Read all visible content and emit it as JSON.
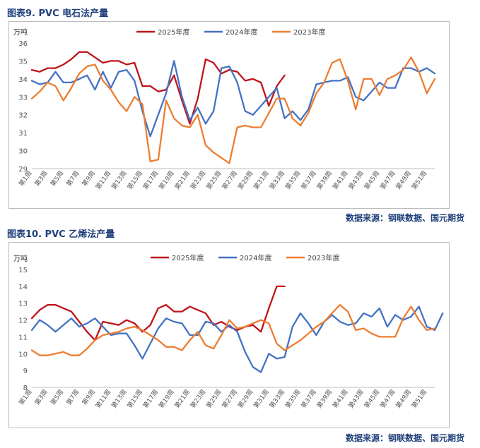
{
  "figure1": {
    "title": "图表9.  PVC 电石法产量",
    "unit": "万吨",
    "source": "数据来源：钢联数据、国元期货"
  },
  "figure2": {
    "title": "图表10.  PVC 乙烯法产量",
    "unit": "万吨",
    "source": "数据来源：钢联数据、国元期货"
  },
  "colors": {
    "s2025": "#c0141a",
    "s2024": "#4472c4",
    "s2023": "#ed7d31"
  },
  "chart_data": [
    {
      "type": "line",
      "title": "",
      "ylabel": "万吨",
      "ylim": [
        29,
        36
      ],
      "yticks": [
        29,
        30,
        31,
        32,
        33,
        34,
        35,
        36
      ],
      "x_tick_labels": [
        "第1周",
        "第3周",
        "第5周",
        "第7周",
        "第9周",
        "第11周",
        "第13周",
        "第15周",
        "第17周",
        "第19周",
        "第21周",
        "第23周",
        "第25周",
        "第27周",
        "第29周",
        "第31周",
        "第33周",
        "第35周",
        "第37周",
        "第39周",
        "第41周",
        "第43周",
        "第45周",
        "第47周",
        "第49周",
        "第51周"
      ],
      "x_tick_weeks": [
        1,
        3,
        5,
        7,
        9,
        11,
        13,
        15,
        17,
        19,
        21,
        23,
        25,
        27,
        29,
        31,
        33,
        35,
        37,
        39,
        41,
        43,
        45,
        47,
        49,
        51
      ],
      "x_range": [
        1,
        52
      ],
      "legend_position": "top-center",
      "series": [
        {
          "name": "2025年度",
          "weeks_start": 1,
          "values": [
            34.5,
            34.4,
            34.6,
            34.6,
            34.8,
            35.1,
            35.5,
            35.5,
            35.2,
            34.9,
            35.0,
            35.0,
            34.8,
            34.9,
            33.6,
            33.6,
            33.3,
            33.4,
            34.2,
            32.8,
            31.5,
            32.9,
            35.1,
            34.9,
            34.3,
            34.5,
            34.4,
            33.9,
            34.0,
            33.8,
            32.5,
            33.6,
            34.2
          ]
        },
        {
          "name": "2024年度",
          "weeks_start": 1,
          "values": [
            33.9,
            33.7,
            33.8,
            34.4,
            33.8,
            33.8,
            34.0,
            34.2,
            33.4,
            34.4,
            33.5,
            34.4,
            34.5,
            33.9,
            32.2,
            30.8,
            32.0,
            33.2,
            35.0,
            33.0,
            31.7,
            32.4,
            31.5,
            32.2,
            34.6,
            34.7,
            33.8,
            32.2,
            32.0,
            32.5,
            33.0,
            33.5,
            31.8,
            32.2,
            31.7,
            32.3,
            33.7,
            33.8,
            33.9,
            33.9,
            34.1,
            33.0,
            32.8,
            33.3,
            33.8,
            33.5,
            33.5,
            34.6,
            34.6,
            34.4,
            34.6,
            34.3
          ]
        },
        {
          "name": "2023年度",
          "weeks_start": 1,
          "values": [
            32.9,
            33.3,
            33.8,
            33.6,
            32.8,
            33.5,
            34.3,
            34.7,
            34.8,
            33.9,
            33.4,
            32.7,
            32.2,
            33.0,
            32.6,
            29.4,
            29.5,
            32.8,
            31.8,
            31.4,
            31.3,
            32.0,
            30.3,
            29.9,
            29.6,
            29.3,
            31.3,
            31.4,
            31.3,
            31.3,
            32.1,
            32.9,
            32.9,
            31.8,
            31.4,
            32.1,
            33.2,
            33.8,
            34.9,
            35.1,
            33.9,
            32.3,
            34.0,
            34.0,
            33.1,
            34.0,
            34.2,
            34.5,
            35.2,
            34.4,
            33.2,
            34.0
          ]
        }
      ]
    },
    {
      "type": "line",
      "title": "",
      "ylabel": "万吨",
      "ylim": [
        8,
        15
      ],
      "yticks": [
        8,
        9,
        10,
        11,
        12,
        13,
        14,
        15
      ],
      "x_tick_labels": [
        "第1周",
        "第3周",
        "第5周",
        "第7周",
        "第9周",
        "第11周",
        "第13周",
        "第15周",
        "第17周",
        "第19周",
        "第21周",
        "第23周",
        "第25周",
        "第27周",
        "第29周",
        "第31周",
        "第33周",
        "第35周",
        "第37周",
        "第39周",
        "第41周",
        "第43周",
        "第45周",
        "第47周",
        "第49周",
        "第51周"
      ],
      "x_tick_weeks": [
        1,
        3,
        5,
        7,
        9,
        11,
        13,
        15,
        17,
        19,
        21,
        23,
        25,
        27,
        29,
        31,
        33,
        35,
        37,
        39,
        41,
        43,
        45,
        47,
        49,
        51
      ],
      "x_range": [
        1,
        52
      ],
      "legend_position": "top-center",
      "series": [
        {
          "name": "2025年度",
          "weeks_start": 1,
          "values": [
            12.1,
            12.6,
            12.9,
            12.9,
            12.7,
            12.5,
            11.9,
            11.3,
            10.8,
            11.9,
            11.8,
            11.7,
            12.0,
            11.8,
            11.3,
            11.7,
            12.7,
            12.9,
            12.5,
            12.5,
            12.8,
            12.6,
            12.4,
            11.7,
            11.9,
            11.6,
            11.4,
            11.6,
            11.7,
            11.3,
            12.7,
            14.0,
            14.0
          ]
        },
        {
          "name": "2024年度",
          "weeks_start": 1,
          "values": [
            11.4,
            12.0,
            11.7,
            11.3,
            11.7,
            12.1,
            11.6,
            11.8,
            12.1,
            11.6,
            11.1,
            11.2,
            11.2,
            10.5,
            9.7,
            10.6,
            11.5,
            12.1,
            11.9,
            11.8,
            11.1,
            11.1,
            11.9,
            11.8,
            11.3,
            11.7,
            11.3,
            10.1,
            9.2,
            8.9,
            10.0,
            9.7,
            9.8,
            11.6,
            12.4,
            11.8,
            11.1,
            11.9,
            12.3,
            11.9,
            11.7,
            11.8,
            12.4,
            12.2,
            12.7,
            11.6,
            12.3,
            12.0,
            12.2,
            12.8,
            11.6,
            11.4,
            12.4
          ]
        },
        {
          "name": "2023年度",
          "weeks_start": 1,
          "values": [
            10.2,
            9.9,
            9.9,
            10.0,
            10.1,
            9.9,
            9.9,
            10.3,
            10.8,
            11.1,
            11.2,
            11.3,
            11.5,
            11.6,
            11.4,
            11.1,
            10.8,
            10.4,
            10.4,
            10.2,
            10.8,
            11.3,
            10.5,
            10.3,
            11.1,
            12.0,
            11.5,
            11.6,
            11.8,
            12.0,
            11.8,
            10.6,
            10.2,
            10.5,
            10.8,
            11.2,
            11.6,
            11.9,
            12.4,
            12.9,
            12.5,
            11.4,
            11.5,
            11.2,
            11.0,
            11.0,
            11.0,
            12.1,
            12.8,
            12.0,
            11.4,
            11.5
          ]
        }
      ]
    }
  ]
}
